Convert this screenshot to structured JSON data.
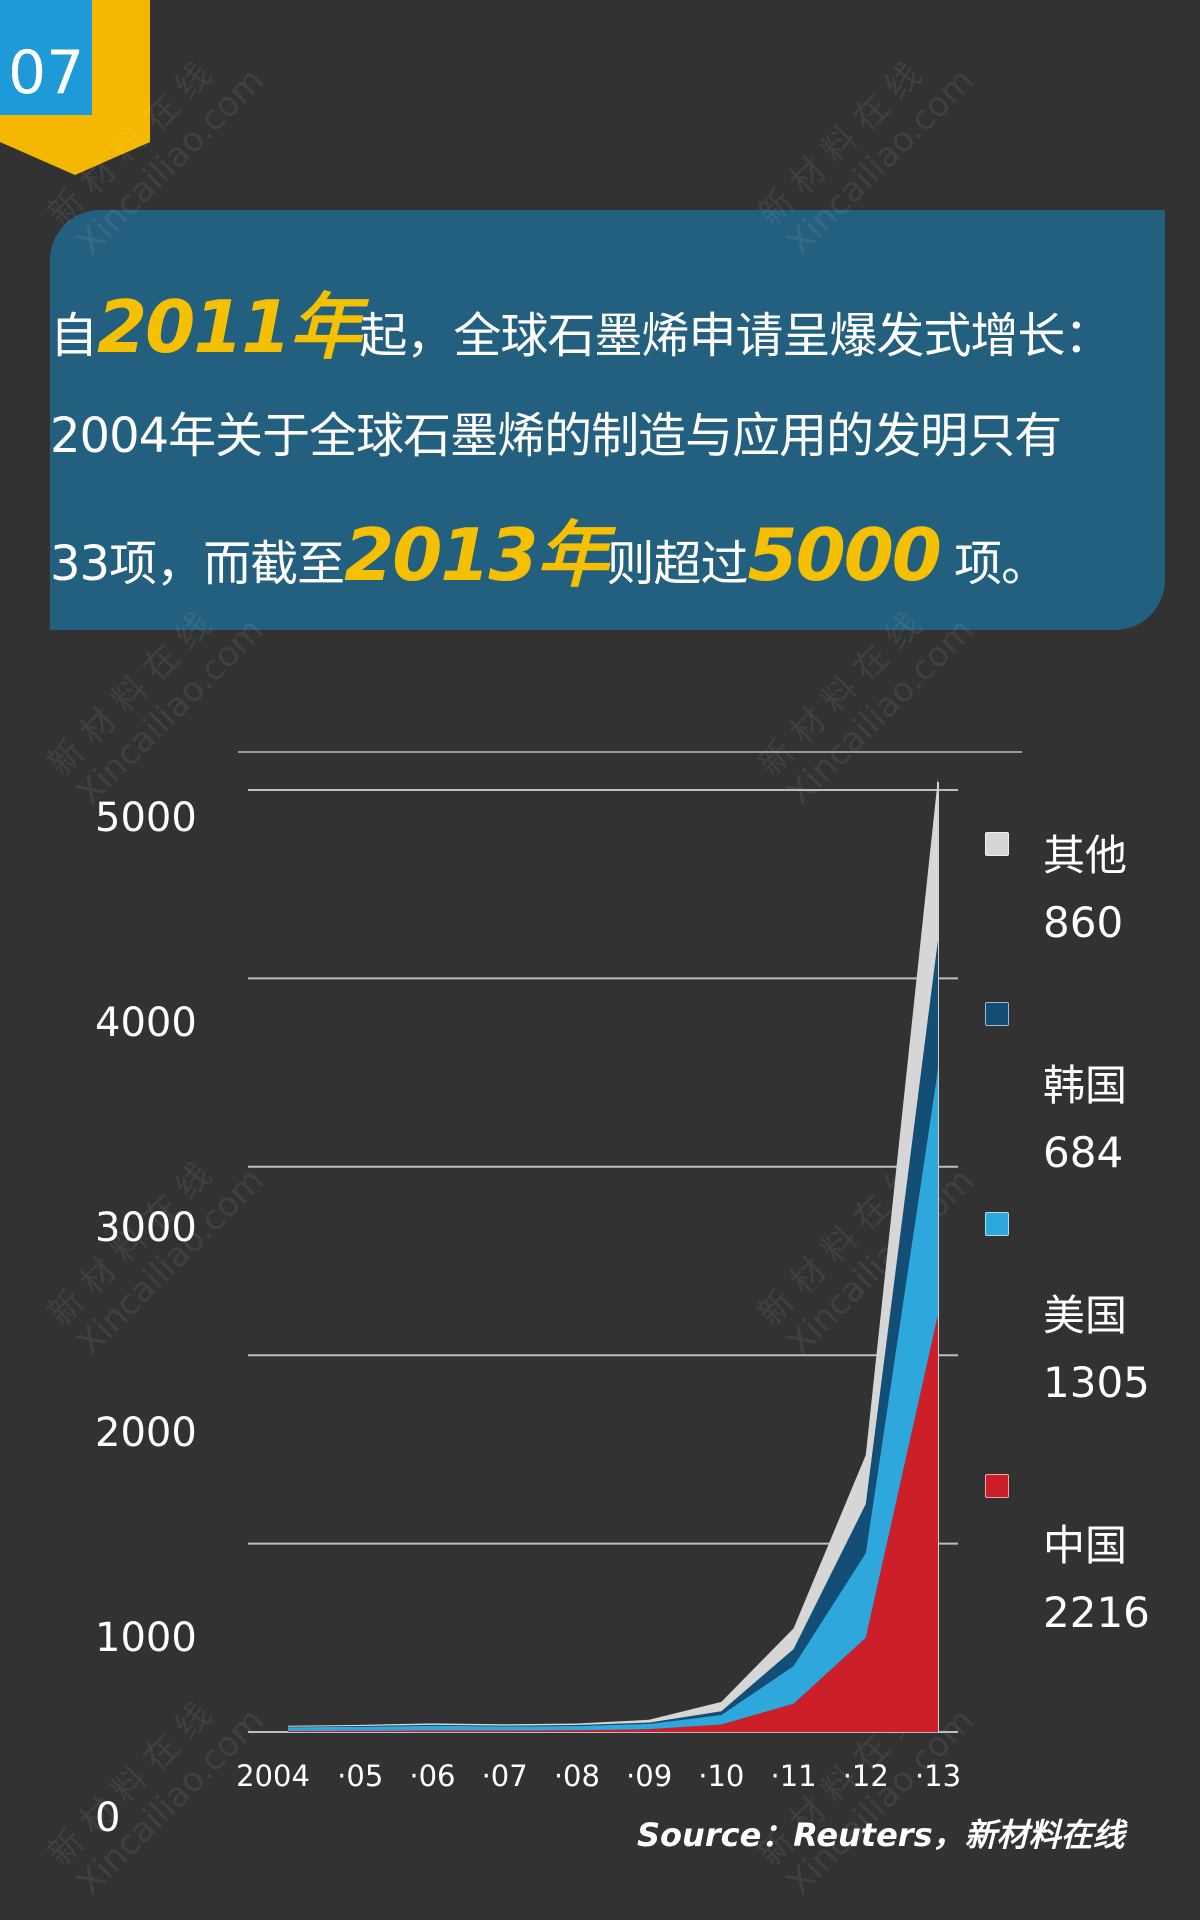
{
  "badge": {
    "number": "07"
  },
  "headline": {
    "line1_pre": "自",
    "line1_em": "2011年",
    "line1_post": "起，全球石墨烯申请呈爆发式增长：",
    "line2": "2004年关于全球石墨烯的制造与应用的发明只有",
    "line3_pre": "33项，而截至",
    "line3_em1": "2013年",
    "line3_mid": "则超过",
    "line3_em2": "5000",
    "line3_post": " 项。"
  },
  "watermark": {
    "line1": "新 材 料 在 线",
    "line2": "Xincailiao.com"
  },
  "colors": {
    "background": "#323232",
    "headline_box": "#23607f",
    "highlight": "#f5c000",
    "badge_blue": "#1e9ad8",
    "badge_yellow": "#f5b800",
    "china": "#cc1f2a",
    "usa": "#2ea7dc",
    "korea": "#124e75",
    "other": "#d6d6d6"
  },
  "source": "Source：Reuters，新材料在线",
  "chart_data": {
    "type": "area",
    "stacked": true,
    "x": [
      "2004",
      "·05",
      "·06",
      "·07",
      "·08",
      "·09",
      "·10",
      "·11",
      "·12",
      "·13"
    ],
    "ylim": [
      0,
      5000
    ],
    "yticks": [
      "5000",
      "4000",
      "3000",
      "2000",
      "1000",
      "0"
    ],
    "grid": true,
    "legend_position": "right",
    "series": [
      {
        "name": "中国",
        "total": "2216",
        "color": "#cc1f2a",
        "values": [
          5,
          6,
          8,
          8,
          9,
          15,
          40,
          150,
          500,
          2216
        ]
      },
      {
        "name": "美国",
        "total": "1305",
        "color": "#2ea7dc",
        "values": [
          20,
          22,
          25,
          22,
          23,
          28,
          50,
          200,
          450,
          1305
        ]
      },
      {
        "name": "韩国",
        "total": "684",
        "color": "#124e75",
        "values": [
          3,
          4,
          5,
          4,
          5,
          7,
          20,
          90,
          260,
          684
        ]
      },
      {
        "name": "其他",
        "total": "860",
        "color": "#d6d6d6",
        "values": [
          5,
          6,
          8,
          7,
          8,
          15,
          50,
          110,
          260,
          860
        ]
      }
    ]
  }
}
